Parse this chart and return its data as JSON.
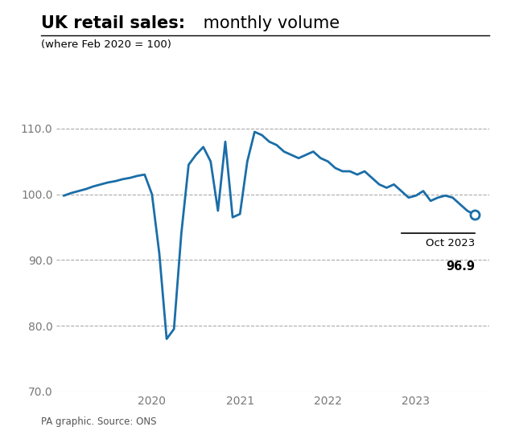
{
  "title_bold": "UK retail sales:",
  "title_normal": " monthly volume",
  "subtitle": "(where Feb 2020 = 100)",
  "source": "PA graphic. Source: ONS",
  "annotation_label": "Oct 2023",
  "annotation_value": "96.9",
  "line_color": "#1a6ea8",
  "background_color": "#ffffff",
  "ylim": [
    70.0,
    115.0
  ],
  "yticks": [
    70.0,
    80.0,
    90.0,
    100.0,
    110.0
  ],
  "values": [
    99.8,
    100.2,
    100.5,
    100.8,
    101.2,
    101.5,
    101.8,
    102.0,
    102.3,
    102.5,
    102.8,
    103.0,
    100.0,
    91.0,
    78.0,
    79.5,
    94.0,
    104.5,
    106.0,
    107.2,
    105.0,
    97.5,
    108.0,
    96.5,
    97.0,
    105.0,
    109.5,
    109.0,
    108.0,
    107.5,
    106.5,
    106.0,
    105.5,
    106.0,
    106.5,
    105.5,
    105.0,
    104.0,
    103.5,
    103.5,
    103.0,
    103.5,
    102.5,
    101.5,
    101.0,
    101.5,
    100.5,
    99.5,
    99.8,
    100.5,
    99.0,
    99.5,
    99.8,
    99.5,
    98.5,
    97.5,
    96.9
  ],
  "x_tick_positions": [
    12,
    24,
    36,
    48
  ],
  "x_tick_labels": [
    "2020",
    "2021",
    "2022",
    "2023"
  ],
  "tick_color": "#777777",
  "grid_color": "#aaaaaa",
  "source_color": "#555555"
}
